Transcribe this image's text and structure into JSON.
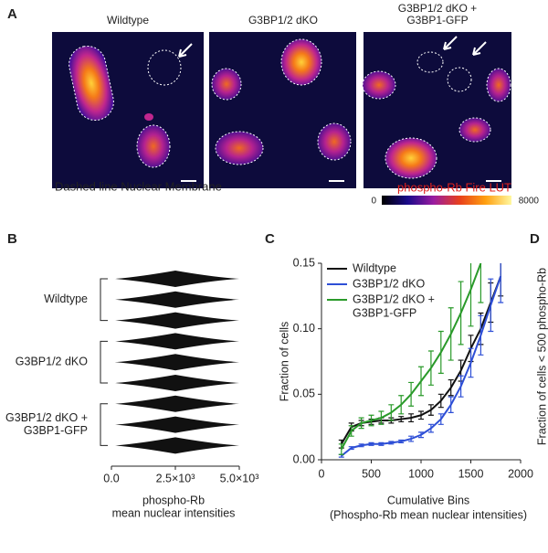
{
  "panels": {
    "A": {
      "label": "A",
      "images": [
        {
          "title": [
            "Wildtype"
          ]
        },
        {
          "title": [
            "G3BP1/2 dKO"
          ]
        },
        {
          "title": [
            "G3BP1/2 dKO +",
            "G3BP1-GFP"
          ]
        }
      ],
      "caption": "Dashed line Nuclear Membrane",
      "lut": {
        "title": "phospho-Rb Fire LUT",
        "min": 0,
        "max": 8000
      }
    },
    "D": {
      "label": "D",
      "ylabel": "Fraction of cells < 500 phospho-Rb"
    }
  },
  "chart_data": [
    {
      "label": "B",
      "type": "swarm",
      "groups": [
        {
          "name": [
            "Wildtype"
          ]
        },
        {
          "name": [
            "G3BP1/2 dKO"
          ]
        },
        {
          "name": [
            "G3BP1/2 dKO +",
            "G3BP1-GFP"
          ]
        }
      ],
      "xlim": [
        0,
        5000
      ],
      "xticks": [
        {
          "value": 0,
          "label": "0.0"
        },
        {
          "value": 2500,
          "label": "2.5×10³"
        },
        {
          "value": 5000,
          "label": "5.0×10³"
        }
      ],
      "xlabel": [
        "phospho-Rb",
        "mean nuclear intensities"
      ]
    },
    {
      "label": "C",
      "type": "line",
      "ylabel": "Fraction of cells",
      "xlabel": [
        "Cumulative Bins",
        "(Phospho-Rb mean nuclear intensities)"
      ],
      "x": [
        200,
        300,
        400,
        500,
        600,
        700,
        800,
        900,
        1000,
        1100,
        1200,
        1300,
        1400,
        1500,
        1600,
        1700,
        1800
      ],
      "series": [
        {
          "name": [
            "Wildtype"
          ],
          "color": "#111111",
          "values": [
            0.012,
            0.025,
            0.028,
            0.029,
            0.03,
            0.03,
            0.031,
            0.032,
            0.034,
            0.038,
            0.045,
            0.055,
            0.068,
            0.085,
            0.1,
            0.12,
            0.14
          ],
          "errors": [
            0.003,
            0.003,
            0.002,
            0.002,
            0.002,
            0.002,
            0.002,
            0.003,
            0.003,
            0.004,
            0.005,
            0.006,
            0.008,
            0.01,
            0.012,
            0.015,
            0.015
          ]
        },
        {
          "name": [
            "G3BP1/2 dKO"
          ],
          "color": "#2e4fd6",
          "values": [
            0.003,
            0.009,
            0.011,
            0.012,
            0.012,
            0.013,
            0.014,
            0.016,
            0.019,
            0.024,
            0.031,
            0.042,
            0.056,
            0.074,
            0.095,
            0.118,
            0.14
          ],
          "errors": [
            0.001,
            0.001,
            0.001,
            0.001,
            0.001,
            0.001,
            0.001,
            0.002,
            0.002,
            0.003,
            0.004,
            0.006,
            0.008,
            0.011,
            0.015,
            0.02,
            0.02
          ]
        },
        {
          "name": [
            "G3BP1/2 dKO +",
            "G3BP1-GFP"
          ],
          "color": "#2a9a2a",
          "values": [
            0.008,
            0.022,
            0.028,
            0.03,
            0.032,
            0.036,
            0.042,
            0.05,
            0.06,
            0.07,
            0.082,
            0.096,
            0.112,
            0.13,
            0.15,
            null,
            null
          ],
          "errors": [
            0.004,
            0.004,
            0.004,
            0.004,
            0.005,
            0.006,
            0.007,
            0.009,
            0.011,
            0.013,
            0.016,
            0.02,
            0.024,
            0.028,
            0.03,
            null,
            null
          ]
        }
      ],
      "xlim": [
        0,
        2000
      ],
      "xticks": [
        0,
        500,
        1000,
        1500,
        2000
      ],
      "ylim": [
        0,
        0.15
      ],
      "yticks": [
        {
          "value": 0,
          "label": "0.00"
        },
        {
          "value": 0.05,
          "label": "0.05"
        },
        {
          "value": 0.1,
          "label": "0.10"
        },
        {
          "value": 0.15,
          "label": "0.15"
        }
      ]
    }
  ]
}
